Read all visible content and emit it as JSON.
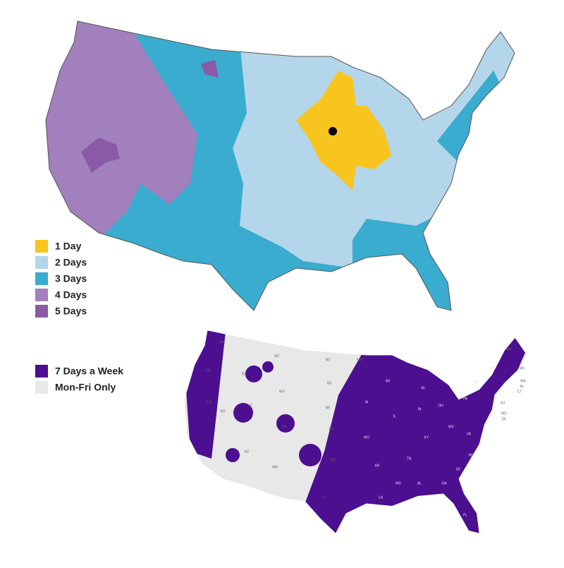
{
  "maps": [
    {
      "legend": [
        {
          "label": "1 Day",
          "color": "#f7c51e"
        },
        {
          "label": "2 Days",
          "color": "#b3d6ea"
        },
        {
          "label": "3 Days",
          "color": "#3aaccf"
        },
        {
          "label": "4 Days",
          "color": "#a27fbd"
        },
        {
          "label": "5 Days",
          "color": "#8a5aa6"
        }
      ]
    },
    {
      "legend": [
        {
          "label": "7 Days a Week",
          "color": "#4b0f8f"
        },
        {
          "label": "Mon-Fri Only",
          "color": "#e8e8e8"
        }
      ],
      "state_labels": [
        "WA",
        "OR",
        "ID",
        "MT",
        "ND",
        "MN",
        "WY",
        "SD",
        "NE",
        "NV",
        "CA",
        "UT",
        "CO",
        "KS",
        "AZ",
        "NM",
        "OK",
        "TX",
        "IA",
        "MO",
        "AR",
        "LA",
        "MS",
        "AL",
        "GA",
        "FL",
        "TN",
        "KY",
        "IL",
        "IN",
        "OH",
        "MI",
        "WI",
        "WV",
        "VA",
        "NC",
        "SC",
        "PA",
        "NY",
        "VT",
        "NH",
        "ME",
        "MA",
        "RI",
        "CT",
        "NJ",
        "MD",
        "DE"
      ]
    }
  ]
}
